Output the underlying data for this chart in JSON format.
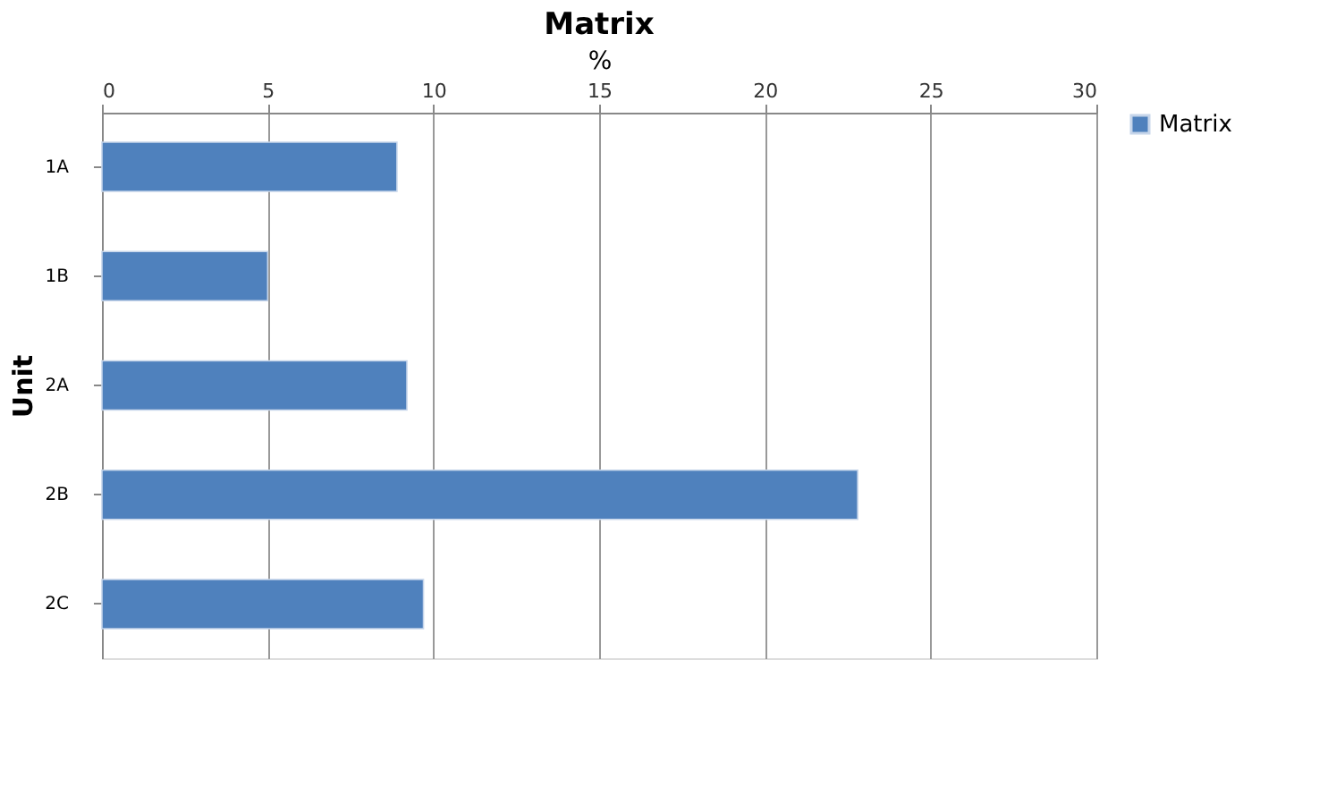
{
  "chart_data": {
    "type": "bar",
    "orientation": "horizontal",
    "title": "Matrix",
    "xlabel": "%",
    "ylabel": "Unit",
    "categories": [
      "1A",
      "1B",
      "2A",
      "2B",
      "2C"
    ],
    "series": [
      {
        "name": "Matrix",
        "color": "#4f81bd",
        "values": [
          8.9,
          5.0,
          9.2,
          22.8,
          9.7
        ]
      }
    ],
    "xlim": [
      0,
      30
    ],
    "xticks": [
      0,
      5,
      10,
      15,
      20,
      25,
      30
    ],
    "grid": "x",
    "legend": "right"
  }
}
